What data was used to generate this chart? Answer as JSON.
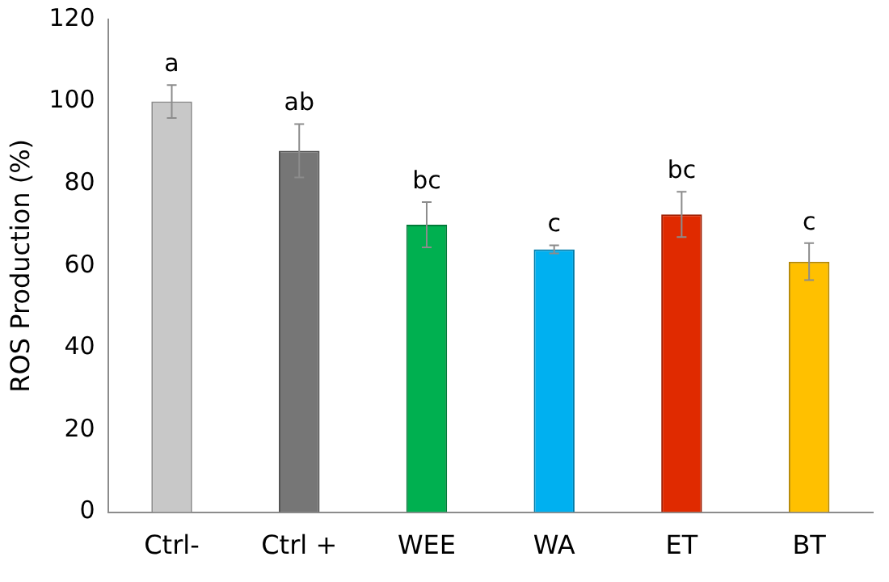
{
  "chart_data": {
    "type": "bar",
    "ylabel": "ROS Production (%)",
    "categories": [
      "Ctrl-",
      "Ctrl +",
      "WEE",
      "WA",
      "ET",
      "BT"
    ],
    "values": [
      100,
      88,
      70,
      64,
      72.5,
      61
    ],
    "colors": [
      "#c8c8c8",
      "#767676",
      "#00b050",
      "#00b0f0",
      "#e02a00",
      "#ffc000"
    ],
    "errors": [
      4,
      6.5,
      5.5,
      1,
      5.5,
      4.5
    ],
    "ylim": [
      0,
      120
    ],
    "yticks": [
      0,
      20,
      40,
      60,
      80,
      100,
      120
    ],
    "grid": false,
    "legend": false,
    "annotations": [
      {
        "text": "a",
        "x": "Ctrl-",
        "y": 104
      },
      {
        "text": "ab",
        "x": "Ctrl +",
        "y": 94.5
      },
      {
        "text": "bc",
        "x": "WEE",
        "y": 75.5
      },
      {
        "text": "c",
        "x": "WA",
        "y": 65
      },
      {
        "text": "bc",
        "x": "ET",
        "y": 78
      },
      {
        "text": "c",
        "x": "BT",
        "y": 65.5
      }
    ]
  }
}
